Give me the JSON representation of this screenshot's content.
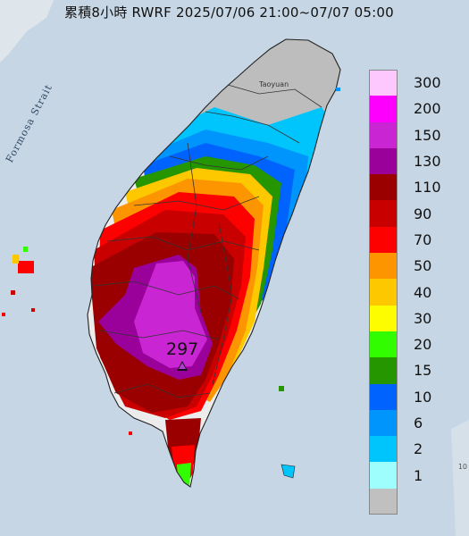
{
  "title": "累積8小時 RWRF 2025/07/06 21:00~07/07 05:00",
  "map_labels": {
    "strait": "Formosa Strait",
    "city": "Taoyuan",
    "peak_value": "297",
    "edge_label": "10"
  },
  "legend": [
    {
      "label": "300",
      "color": "#fdc8fd"
    },
    {
      "label": "200",
      "color": "#fd00fd"
    },
    {
      "label": "150",
      "color": "#c925d2"
    },
    {
      "label": "130",
      "color": "#9a009a"
    },
    {
      "label": "110",
      "color": "#9a0000"
    },
    {
      "label": "90",
      "color": "#c80000"
    },
    {
      "label": "70",
      "color": "#fd0000"
    },
    {
      "label": "50",
      "color": "#fd9500"
    },
    {
      "label": "40",
      "color": "#fdc800"
    },
    {
      "label": "30",
      "color": "#fdfd00"
    },
    {
      "label": "20",
      "color": "#32fd00"
    },
    {
      "label": "15",
      "color": "#269600"
    },
    {
      "label": "10",
      "color": "#0063fd"
    },
    {
      "label": "6",
      "color": "#0095fd"
    },
    {
      "label": "2",
      "color": "#00c5fd"
    },
    {
      "label": "1",
      "color": "#9efdfd"
    },
    {
      "label": "",
      "color": "#c0c0c0"
    }
  ]
}
